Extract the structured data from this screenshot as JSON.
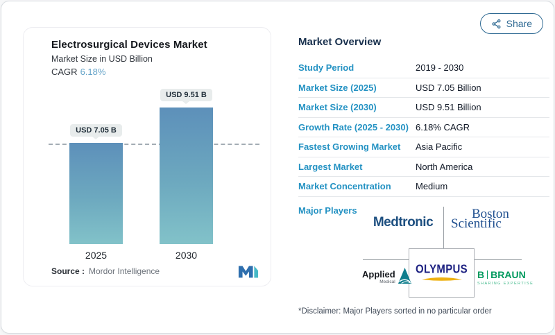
{
  "share": {
    "label": "Share"
  },
  "chart_card": {
    "title": "Electrosurgical Devices Market",
    "subtitle": "Market Size in USD Billion",
    "cagr_label": "CAGR",
    "cagr_value": "6.18%",
    "bars": [
      {
        "year": "2025",
        "label": "USD 7.05 B",
        "value": 7.05
      },
      {
        "year": "2030",
        "label": "USD 9.51 B",
        "value": 9.51
      }
    ],
    "source_label": "Source :",
    "source_value": "Mordor Intelligence"
  },
  "chart_data": {
    "type": "bar",
    "title": "Electrosurgical Devices Market",
    "subtitle": "Market Size in USD Billion",
    "unit": "USD Billion",
    "categories": [
      "2025",
      "2030"
    ],
    "values": [
      7.05,
      9.51
    ],
    "bar_labels": [
      "USD 7.05 B",
      "USD 9.51 B"
    ],
    "cagr": "6.18%",
    "reference_line": 7.05,
    "ylim": [
      0,
      9.51
    ],
    "grid": false,
    "legend": false,
    "source": "Mordor Intelligence",
    "bar_color_top": "#5d90ba",
    "bar_color_bottom": "#82c2c9"
  },
  "overview": {
    "heading": "Market Overview",
    "rows": [
      {
        "label": "Study Period",
        "value": "2019 - 2030"
      },
      {
        "label": "Market Size (2025)",
        "value": "USD 7.05 Billion"
      },
      {
        "label": "Market Size (2030)",
        "value": "USD 9.51 Billion"
      },
      {
        "label": "Growth Rate (2025 - 2030)",
        "value": "6.18% CAGR"
      },
      {
        "label": "Fastest Growing Market",
        "value": "Asia Pacific"
      },
      {
        "label": "Largest Market",
        "value": "North America"
      },
      {
        "label": "Market Concentration",
        "value": "Medium"
      }
    ],
    "major_players_label": "Major Players",
    "players": {
      "medtronic": "Medtronic",
      "boston_line1": "Boston",
      "boston_line2": "Scientific",
      "applied_line1": "Applied",
      "applied_line2": "Medical",
      "olympus": "OLYMPUS",
      "braun_b": "B",
      "braun_name": "BRAUN",
      "braun_tagline": "SHARING EXPERTISE"
    },
    "disclaimer": "*Disclaimer: Major Players sorted in no particular order"
  },
  "colors": {
    "accent_label_blue": "#2492c3",
    "heading_navy": "#19314e",
    "share_blue": "#2f6a93",
    "cagr_blue": "#64a3c8",
    "braun_green": "#009a5e",
    "medtronic_blue": "#1d4f80",
    "boston_blue": "#1f4f8f",
    "olympus_navy": "#1e2282"
  }
}
